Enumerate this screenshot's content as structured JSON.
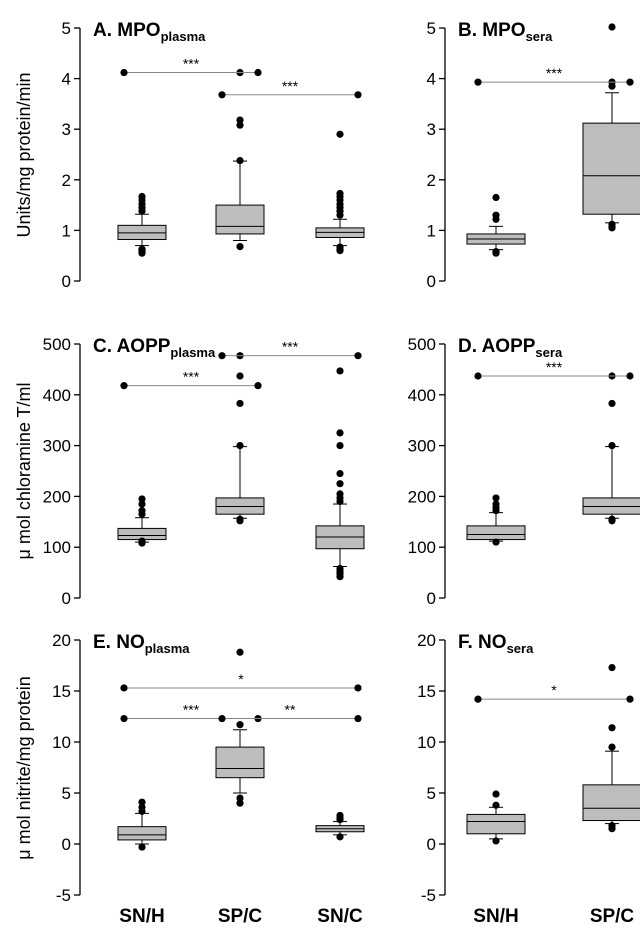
{
  "chart_data": [
    {
      "type": "box",
      "panel": "A",
      "title_main": "A. MPO",
      "title_sub": "plasma",
      "ylabel": "Units/mg protein/min",
      "ylim": [
        0,
        5
      ],
      "yticks": [
        "0",
        "1",
        "2",
        "3",
        "4",
        "5"
      ],
      "categories": [
        "SN/H",
        "SP/C",
        "SN/C"
      ],
      "boxes": [
        {
          "q1": 0.82,
          "median": 0.95,
          "q3": 1.1,
          "whisker_low": 0.7,
          "whisker_high": 1.32,
          "outliers": [
            0.55,
            0.58,
            0.6,
            0.63,
            1.38,
            1.45,
            1.52,
            1.6,
            1.67
          ]
        },
        {
          "q1": 0.93,
          "median": 1.08,
          "q3": 1.5,
          "whisker_low": 0.8,
          "whisker_high": 2.37,
          "outliers": [
            0.68,
            2.38,
            3.08,
            3.18,
            4.12
          ]
        },
        {
          "q1": 0.86,
          "median": 0.96,
          "q3": 1.05,
          "whisker_low": 0.7,
          "whisker_high": 1.22,
          "outliers": [
            0.6,
            0.63,
            0.67,
            1.3,
            1.38,
            1.45,
            1.52,
            1.6,
            1.67,
            1.73,
            2.9
          ]
        }
      ],
      "significance": [
        {
          "from": 0,
          "to": 1,
          "y": 4.12,
          "label": "***"
        },
        {
          "from": 1,
          "to": 2,
          "y": 3.68,
          "label": "***"
        }
      ]
    },
    {
      "type": "box",
      "panel": "B",
      "title_main": "B. MPO",
      "title_sub": "sera",
      "ylim": [
        0,
        5
      ],
      "yticks": [
        "0",
        "1",
        "2",
        "3",
        "4",
        "5"
      ],
      "categories": [
        "SN/H",
        "SP/C"
      ],
      "boxes": [
        {
          "q1": 0.73,
          "median": 0.83,
          "q3": 0.93,
          "whisker_low": 0.62,
          "whisker_high": 1.08,
          "outliers": [
            0.55,
            0.58,
            1.22,
            1.3,
            1.65
          ]
        },
        {
          "q1": 1.32,
          "median": 2.08,
          "q3": 3.12,
          "whisker_low": 1.15,
          "whisker_high": 3.72,
          "outliers": [
            1.05,
            1.08,
            1.12,
            3.85,
            3.93,
            5.02
          ]
        }
      ],
      "significance": [
        {
          "from": 0,
          "to": 1,
          "y": 3.93,
          "label": "***"
        }
      ]
    },
    {
      "type": "box",
      "panel": "C",
      "title_main": "C. AOPP",
      "title_sub": "plasma",
      "ylabel": "μ mol chloramine T/ml",
      "ylim": [
        0,
        500
      ],
      "yticks": [
        "0",
        "100",
        "200",
        "300",
        "400",
        "500"
      ],
      "categories": [
        "SN/H",
        "SP/C",
        "SN/C"
      ],
      "boxes": [
        {
          "q1": 115,
          "median": 123,
          "q3": 137,
          "whisker_low": 110,
          "whisker_high": 158,
          "outliers": [
            108,
            112,
            165,
            172,
            185,
            195
          ]
        },
        {
          "q1": 165,
          "median": 180,
          "q3": 197,
          "whisker_low": 157,
          "whisker_high": 298,
          "outliers": [
            152,
            155,
            300,
            383,
            437,
            477
          ]
        },
        {
          "q1": 97,
          "median": 120,
          "q3": 142,
          "whisker_low": 62,
          "whisker_high": 185,
          "outliers": [
            42,
            48,
            53,
            58,
            190,
            197,
            205,
            225,
            245,
            300,
            325,
            447
          ]
        }
      ],
      "significance": [
        {
          "from": 0,
          "to": 1,
          "y": 418,
          "label": "***"
        },
        {
          "from": 1,
          "to": 2,
          "y": 477,
          "label": "***"
        }
      ]
    },
    {
      "type": "box",
      "panel": "D",
      "title_main": "D. AOPP",
      "title_sub": "sera",
      "ylim": [
        0,
        500
      ],
      "yticks": [
        "0",
        "100",
        "200",
        "300",
        "400",
        "500"
      ],
      "categories": [
        "SN/H",
        "SP/C"
      ],
      "boxes": [
        {
          "q1": 115,
          "median": 125,
          "q3": 142,
          "whisker_low": 112,
          "whisker_high": 168,
          "outliers": [
            110,
            172,
            178,
            185,
            197
          ]
        },
        {
          "q1": 165,
          "median": 180,
          "q3": 197,
          "whisker_low": 157,
          "whisker_high": 298,
          "outliers": [
            152,
            155,
            300,
            383,
            437
          ]
        }
      ],
      "significance": [
        {
          "from": 0,
          "to": 1,
          "y": 437,
          "label": "***"
        }
      ]
    },
    {
      "type": "box",
      "panel": "E",
      "title_main": "E. NO",
      "title_sub": "plasma",
      "ylabel": "μ mol nitrite/mg protein",
      "ylim": [
        -5,
        20
      ],
      "yticks": [
        "-5",
        "0",
        "5",
        "10",
        "15",
        "20"
      ],
      "categories": [
        "SN/H",
        "SP/C",
        "SN/C"
      ],
      "boxes": [
        {
          "q1": 0.4,
          "median": 0.9,
          "q3": 1.7,
          "whisker_low": 0.0,
          "whisker_high": 3.0,
          "outliers": [
            -0.3,
            3.2,
            3.6,
            4.1
          ]
        },
        {
          "q1": 6.5,
          "median": 7.4,
          "q3": 9.5,
          "whisker_low": 5.0,
          "whisker_high": 11.2,
          "outliers": [
            4.0,
            4.5,
            11.7,
            18.8
          ]
        },
        {
          "q1": 1.2,
          "median": 1.5,
          "q3": 1.8,
          "whisker_low": 0.9,
          "whisker_high": 2.2,
          "outliers": [
            0.7,
            2.4,
            2.6,
            2.8
          ]
        }
      ],
      "significance": [
        {
          "from": 0,
          "to": 1,
          "y": 12.3,
          "label": "***"
        },
        {
          "from": 1,
          "to": 2,
          "y": 12.3,
          "label": "**"
        },
        {
          "from": 0,
          "to": 2,
          "y": 15.3,
          "label": "*"
        }
      ]
    },
    {
      "type": "box",
      "panel": "F",
      "title_main": "F. NO",
      "title_sub": "sera",
      "ylim": [
        -5,
        20
      ],
      "yticks": [
        "-5",
        "0",
        "5",
        "10",
        "15",
        "20"
      ],
      "categories": [
        "SN/H",
        "SP/C"
      ],
      "boxes": [
        {
          "q1": 1.0,
          "median": 2.2,
          "q3": 2.9,
          "whisker_low": 0.5,
          "whisker_high": 3.6,
          "outliers": [
            0.3,
            3.8,
            4.9
          ]
        },
        {
          "q1": 2.3,
          "median": 3.5,
          "q3": 5.8,
          "whisker_low": 2.0,
          "whisker_high": 9.1,
          "outliers": [
            1.5,
            1.8,
            9.5,
            11.4,
            17.3
          ]
        }
      ],
      "significance": [
        {
          "from": 0,
          "to": 1,
          "y": 14.2,
          "label": "*"
        }
      ]
    }
  ],
  "bottom_labels": {
    "left": [
      "SN/H",
      "SP/C",
      "SN/C"
    ],
    "right": [
      "SN/H",
      "SP/C"
    ]
  },
  "colors": {
    "box_fill": "#bdbdbd",
    "line": "#000000",
    "sig_line": "#888888"
  }
}
